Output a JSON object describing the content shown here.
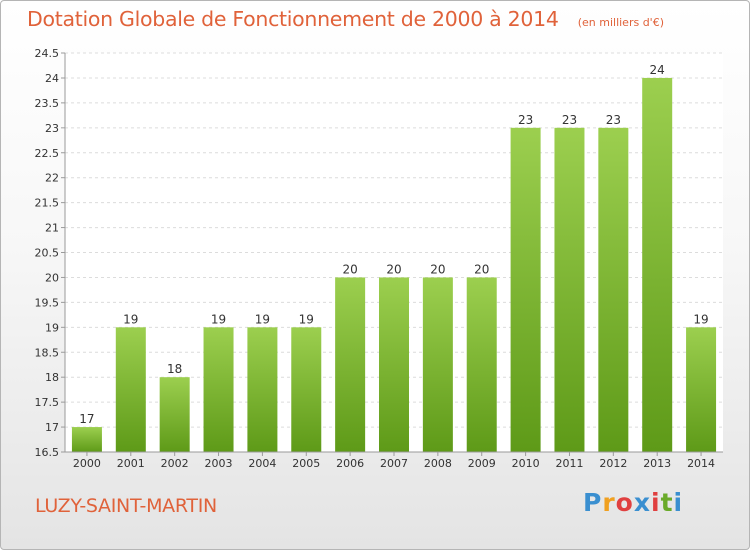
{
  "title": "Dotation Globale de Fonctionnement de 2000 à 2014",
  "subtitle": "(en milliers d'€)",
  "commune": "LUZY-SAINT-MARTIN",
  "logo": {
    "letters": [
      "P",
      "r",
      "o",
      "x",
      "i",
      "t",
      "i"
    ],
    "colors": [
      "#3a8fd0",
      "#f0a020",
      "#e04040",
      "#3a8fd0",
      "#e04040",
      "#6aaa2a",
      "#3a8fd0"
    ]
  },
  "colors": {
    "accent": "#e0623a",
    "bar_top": "#9ccf4f",
    "bar_bottom": "#5e9a18"
  },
  "chart_data": {
    "type": "bar",
    "categories": [
      "2000",
      "2001",
      "2002",
      "2003",
      "2004",
      "2005",
      "2006",
      "2007",
      "2008",
      "2009",
      "2010",
      "2011",
      "2012",
      "2013",
      "2014"
    ],
    "values": [
      17,
      19,
      18,
      19,
      19,
      19,
      20,
      20,
      20,
      20,
      23,
      23,
      23,
      24,
      19
    ],
    "ylim": [
      16.5,
      24.5
    ],
    "yticks": [
      "16.5",
      "17",
      "17.5",
      "18",
      "18.5",
      "19",
      "19.5",
      "20",
      "20.5",
      "21",
      "21.5",
      "22",
      "22.5",
      "23",
      "23.5",
      "24",
      "24.5"
    ],
    "grid": true,
    "xlabel": "",
    "ylabel": ""
  }
}
